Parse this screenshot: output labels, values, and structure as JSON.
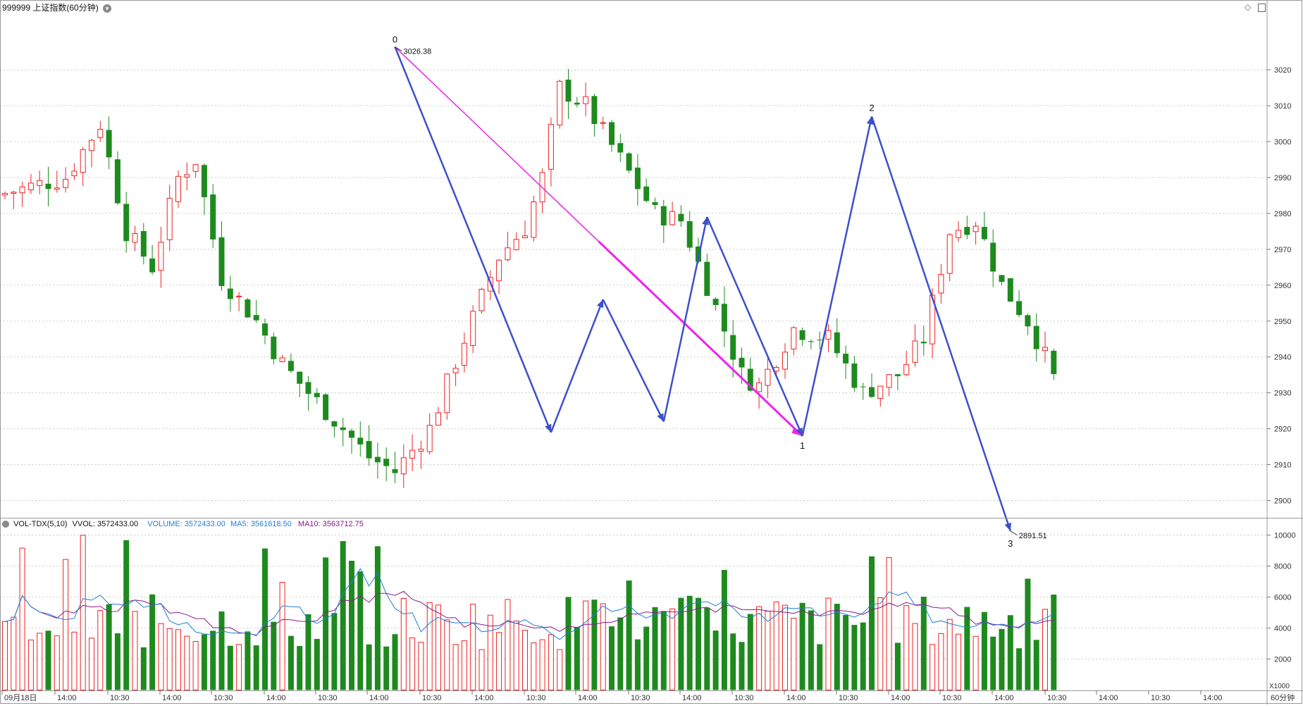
{
  "main": {
    "title": "999999 上证指数(60分钟)",
    "ylim": [
      2885,
      3030
    ],
    "ticks": [
      "3020",
      "3010",
      "3000",
      "2990",
      "2980",
      "2970",
      "2960",
      "2950",
      "2940",
      "2930",
      "2920",
      "2910",
      "2900"
    ],
    "labels": {
      "high": "3026.38",
      "low": "2891.51",
      "w0": "0",
      "w1": "1",
      "w2": "2",
      "w3": "3"
    }
  },
  "vol": {
    "title": "VOL-TDX(5,10)",
    "vvol_label": "VVOL:",
    "vvol_value": "3572433.00",
    "volume_label": "VOLUME:",
    "volume_value": "3572433.00",
    "ma5_label": "MA5:",
    "ma5_value": "3561618.50",
    "ma10_label": "MA10:",
    "ma10_value": "3563712.75",
    "ylim": [
      0,
      10300
    ],
    "ticks": [
      "10000",
      "8000",
      "6000",
      "4000",
      "2000"
    ],
    "unit": "X1000"
  },
  "xaxis": {
    "labels": [
      "09月18日",
      "14:00",
      "10:30",
      "14:00",
      "10:30",
      "14:00",
      "10:30",
      "14:00",
      "10:30",
      "14:00",
      "10:30",
      "14:00",
      "10:30",
      "14:00",
      "10:30",
      "14:00",
      "10:30",
      "14:00",
      "10:30",
      "14:00",
      "10:30",
      "14:00",
      "10:30",
      "14:00"
    ],
    "period_label": "60分钟"
  },
  "colors": {
    "up": "#ee2222",
    "down": "#1e8a1e",
    "wave": "#3c50cc",
    "trend": "#ee22ee",
    "ma5": "#1f7fd6",
    "ma10": "#8a1a8a",
    "grid": "#cccccc"
  },
  "chart_data": {
    "type": "candlestick",
    "series_count": 126,
    "price_range": [
      2891.51,
      3026.38
    ],
    "wave_points": [
      {
        "label": "0",
        "x": 45,
        "value": 3026.38
      },
      {
        "x": 63,
        "value": 2919
      },
      {
        "x": 69,
        "value": 2956
      },
      {
        "x": 76,
        "value": 2922
      },
      {
        "x": 81,
        "value": 2979
      },
      {
        "label": "1",
        "x": 92,
        "value": 2918
      },
      {
        "label": "2",
        "x": 100,
        "value": 3007
      },
      {
        "label": "3",
        "x": 116,
        "value": 2891.51
      }
    ],
    "trend_line": [
      {
        "x": 45,
        "value": 3026.38
      },
      {
        "x": 92,
        "value": 2918
      }
    ],
    "volume_ma5_last": 3561618.5,
    "volume_ma10_last": 3563712.75,
    "volume_last": 3572433.0
  }
}
